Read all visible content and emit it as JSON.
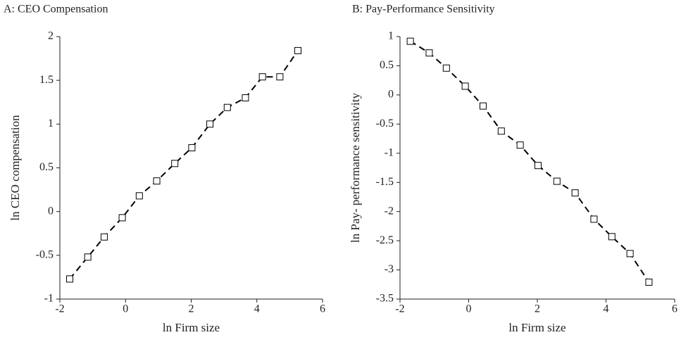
{
  "chart_data": [
    {
      "type": "line",
      "title": "A: CEO Compensation",
      "x_label": "ln Firm size",
      "y_label": "ln CEO compensation",
      "x": [
        -1.7,
        -1.15,
        -0.65,
        -0.1,
        0.42,
        0.95,
        1.5,
        2.02,
        2.57,
        3.1,
        3.65,
        4.17,
        4.7,
        5.25
      ],
      "values": [
        -0.77,
        -0.52,
        -0.29,
        -0.07,
        0.18,
        0.35,
        0.55,
        0.73,
        1.0,
        1.19,
        1.3,
        1.54,
        1.54,
        1.84
      ],
      "color": "#000000",
      "xlim": [
        -2,
        6
      ],
      "xticks": [
        -2,
        0,
        2,
        4,
        6
      ],
      "ylim": [
        -1,
        2
      ],
      "yticks": [
        -1,
        -0.5,
        0,
        0.5,
        1,
        1.5,
        2
      ]
    },
    {
      "type": "line",
      "title": "B: Pay-Performance Sensitivity",
      "x_label": "ln Firm size",
      "y_label": "ln Pay- performance sensitivity",
      "x": [
        -1.7,
        -1.15,
        -0.65,
        -0.1,
        0.42,
        0.95,
        1.5,
        2.02,
        2.57,
        3.1,
        3.65,
        4.17,
        4.7,
        5.25
      ],
      "values": [
        0.92,
        0.72,
        0.46,
        0.15,
        -0.19,
        -0.62,
        -0.86,
        -1.21,
        -1.48,
        -1.68,
        -2.13,
        -2.43,
        -2.72,
        -3.21
      ],
      "color": "#000000",
      "xlim": [
        -2,
        6
      ],
      "xticks": [
        -2,
        0,
        2,
        4,
        6
      ],
      "ylim": [
        -3.5,
        1
      ],
      "yticks": [
        -3.5,
        -3,
        -2.5,
        -2,
        -1.5,
        -1,
        -0.5,
        0,
        0.5,
        1
      ]
    }
  ]
}
